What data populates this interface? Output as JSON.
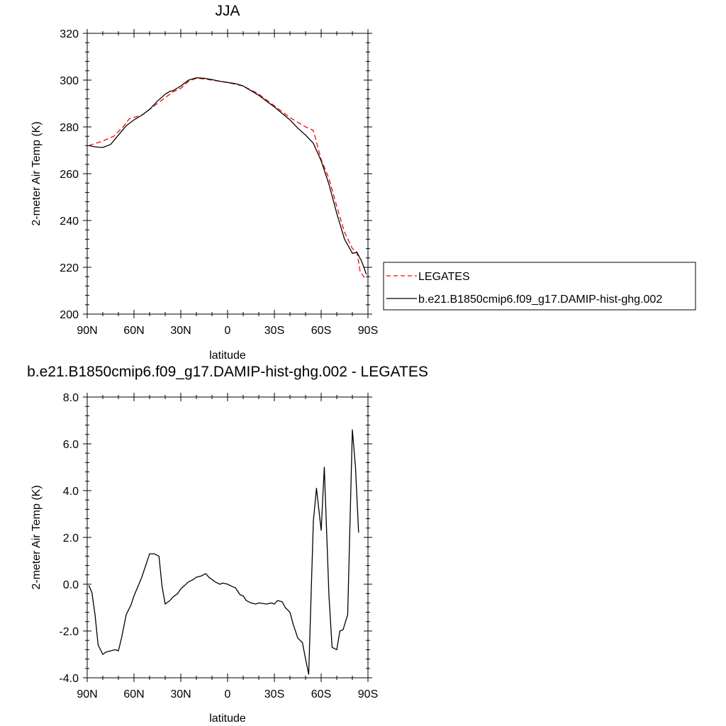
{
  "chart_data": [
    {
      "type": "line",
      "title": "JJA",
      "xlabel": "latitude",
      "ylabel": "2-meter Air Temp (K)",
      "xlim": [
        90,
        -90
      ],
      "ylim": [
        200,
        320
      ],
      "xticks": [
        {
          "value": 90,
          "label": "90N"
        },
        {
          "value": 60,
          "label": "60N"
        },
        {
          "value": 30,
          "label": "30N"
        },
        {
          "value": 0,
          "label": "0"
        },
        {
          "value": -30,
          "label": "30S"
        },
        {
          "value": -60,
          "label": "60S"
        },
        {
          "value": -90,
          "label": "90S"
        }
      ],
      "yticks": [
        {
          "value": 200,
          "label": "200"
        },
        {
          "value": 220,
          "label": "220"
        },
        {
          "value": 240,
          "label": "240"
        },
        {
          "value": 260,
          "label": "260"
        },
        {
          "value": 280,
          "label": "280"
        },
        {
          "value": 300,
          "label": "300"
        },
        {
          "value": 320,
          "label": "320"
        }
      ],
      "grid": false,
      "legend_position": "right",
      "series": [
        {
          "name": "LEGATES",
          "color": "#ff0000",
          "dash": "dashed",
          "points": [
            [
              89,
              272.0
            ],
            [
              80,
              274.0
            ],
            [
              73,
              276.0
            ],
            [
              67,
              280.0
            ],
            [
              63,
              283.5
            ],
            [
              55,
              285.0
            ],
            [
              45,
              290.0
            ],
            [
              35,
              295.0
            ],
            [
              30,
              296.5
            ],
            [
              25,
              299.5
            ],
            [
              20,
              300.8
            ],
            [
              15,
              300.5
            ],
            [
              10,
              300.0
            ],
            [
              5,
              299.5
            ],
            [
              0,
              299.0
            ],
            [
              -10,
              297.5
            ],
            [
              -20,
              294.0
            ],
            [
              -30,
              289.0
            ],
            [
              -40,
              284.0
            ],
            [
              -50,
              280.0
            ],
            [
              -55,
              278.5
            ],
            [
              -60,
              266.0
            ],
            [
              -65,
              258.0
            ],
            [
              -70,
              246.0
            ],
            [
              -75,
              235.0
            ],
            [
              -80,
              228.0
            ],
            [
              -83,
              226.5
            ],
            [
              -85,
              218.0
            ],
            [
              -89,
              214.5
            ]
          ]
        },
        {
          "name": "b.e21.B1850cmip6.f09_g17.DAMIP-hist-ghg.002",
          "color": "#000000",
          "dash": "solid",
          "points": [
            [
              89,
              272.0
            ],
            [
              85,
              271.5
            ],
            [
              80,
              271.2
            ],
            [
              75,
              272.5
            ],
            [
              70,
              276.5
            ],
            [
              65,
              280.5
            ],
            [
              60,
              283.0
            ],
            [
              55,
              285.0
            ],
            [
              50,
              287.5
            ],
            [
              45,
              291.0
            ],
            [
              40,
              294.0
            ],
            [
              37,
              295.2
            ],
            [
              35,
              295.5
            ],
            [
              30,
              297.5
            ],
            [
              25,
              300.0
            ],
            [
              20,
              301.0
            ],
            [
              15,
              300.8
            ],
            [
              10,
              300.2
            ],
            [
              5,
              299.5
            ],
            [
              0,
              299.0
            ],
            [
              -5,
              298.5
            ],
            [
              -10,
              297.5
            ],
            [
              -20,
              293.5
            ],
            [
              -30,
              288.5
            ],
            [
              -40,
              283.0
            ],
            [
              -45,
              279.5
            ],
            [
              -50,
              276.5
            ],
            [
              -55,
              273.0
            ],
            [
              -60,
              265.5
            ],
            [
              -65,
              255.5
            ],
            [
              -70,
              243.0
            ],
            [
              -75,
              232.0
            ],
            [
              -80,
              226.0
            ],
            [
              -83,
              226.3
            ],
            [
              -86,
              222.5
            ],
            [
              -89,
              217.0
            ]
          ]
        }
      ]
    },
    {
      "type": "line",
      "title": "b.e21.B1850cmip6.f09_g17.DAMIP-hist-ghg.002 - LEGATES",
      "xlabel": "latitude",
      "ylabel": "2-meter Air Temp (K)",
      "xlim": [
        90,
        -90
      ],
      "ylim": [
        -4,
        8
      ],
      "xticks": [
        {
          "value": 90,
          "label": "90N"
        },
        {
          "value": 60,
          "label": "60N"
        },
        {
          "value": 30,
          "label": "30N"
        },
        {
          "value": 0,
          "label": "0"
        },
        {
          "value": -30,
          "label": "30S"
        },
        {
          "value": -60,
          "label": "60S"
        },
        {
          "value": -90,
          "label": "90S"
        }
      ],
      "yticks": [
        {
          "value": -4,
          "label": "-4.0"
        },
        {
          "value": -2,
          "label": "-2.0"
        },
        {
          "value": 0,
          "label": "0.0"
        },
        {
          "value": 2,
          "label": "2.0"
        },
        {
          "value": 4,
          "label": "4.0"
        },
        {
          "value": 6,
          "label": "6.0"
        },
        {
          "value": 8,
          "label": "8.0"
        }
      ],
      "grid": false,
      "series": [
        {
          "color": "#000000",
          "dash": "solid",
          "points": [
            [
              89,
              -0.05
            ],
            [
              87,
              -0.35
            ],
            [
              85,
              -1.3
            ],
            [
              83,
              -2.6
            ],
            [
              80,
              -3.0
            ],
            [
              78,
              -2.9
            ],
            [
              75,
              -2.85
            ],
            [
              72,
              -2.8
            ],
            [
              70,
              -2.85
            ],
            [
              68,
              -2.3
            ],
            [
              65,
              -1.3
            ],
            [
              62,
              -0.9
            ],
            [
              60,
              -0.5
            ],
            [
              55,
              0.3
            ],
            [
              52,
              0.9
            ],
            [
              50,
              1.3
            ],
            [
              47,
              1.3
            ],
            [
              44,
              1.2
            ],
            [
              42,
              -0.1
            ],
            [
              40,
              -0.85
            ],
            [
              37,
              -0.7
            ],
            [
              35,
              -0.55
            ],
            [
              32,
              -0.4
            ],
            [
              30,
              -0.2
            ],
            [
              25,
              0.1
            ],
            [
              22,
              0.2
            ],
            [
              20,
              0.3
            ],
            [
              17,
              0.35
            ],
            [
              14,
              0.45
            ],
            [
              12,
              0.3
            ],
            [
              8,
              0.1
            ],
            [
              5,
              0.0
            ],
            [
              3,
              0.05
            ],
            [
              0,
              0.0
            ],
            [
              -3,
              -0.1
            ],
            [
              -5,
              -0.15
            ],
            [
              -8,
              -0.45
            ],
            [
              -10,
              -0.5
            ],
            [
              -12,
              -0.7
            ],
            [
              -15,
              -0.8
            ],
            [
              -18,
              -0.85
            ],
            [
              -20,
              -0.8
            ],
            [
              -25,
              -0.85
            ],
            [
              -28,
              -0.8
            ],
            [
              -30,
              -0.85
            ],
            [
              -32,
              -0.7
            ],
            [
              -35,
              -0.75
            ],
            [
              -37,
              -1.0
            ],
            [
              -40,
              -1.2
            ],
            [
              -42,
              -1.7
            ],
            [
              -45,
              -2.3
            ],
            [
              -48,
              -2.5
            ],
            [
              -50,
              -3.2
            ],
            [
              -52,
              -3.85
            ],
            [
              -55,
              2.7
            ],
            [
              -57,
              4.1
            ],
            [
              -60,
              2.3
            ],
            [
              -62,
              5.0
            ],
            [
              -65,
              -0.5
            ],
            [
              -67,
              -2.7
            ],
            [
              -70,
              -2.8
            ],
            [
              -72,
              -2.0
            ],
            [
              -74,
              -1.95
            ],
            [
              -77,
              -1.3
            ],
            [
              -80,
              6.6
            ],
            [
              -82,
              5.0
            ],
            [
              -84,
              2.2
            ]
          ]
        }
      ]
    }
  ]
}
